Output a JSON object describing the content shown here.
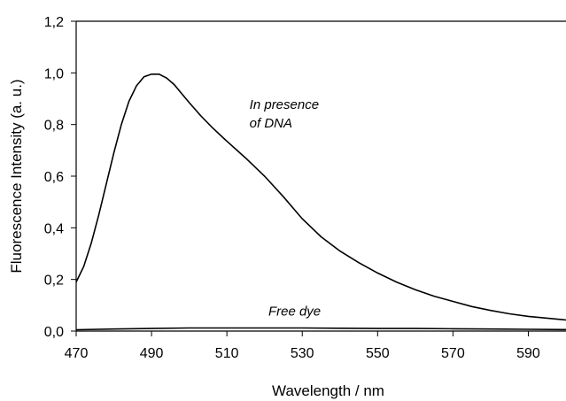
{
  "chart_data": {
    "type": "line",
    "title": "",
    "xlabel": "Wavelength / nm",
    "ylabel": "Fluorescence Intensity (a. u.)",
    "xlim": [
      470,
      600
    ],
    "ylim": [
      0,
      1.2
    ],
    "x_ticks": [
      "470",
      "490",
      "510",
      "530",
      "550",
      "570",
      "590"
    ],
    "y_ticks": [
      "0,0",
      "0,2",
      "0,4",
      "0,6",
      "0,8",
      "1,0",
      "1,2"
    ],
    "grid": false,
    "legend": "none",
    "annotations": [
      {
        "lines": [
          "In presence",
          "of DNA"
        ],
        "x": 516,
        "y": 0.86
      },
      {
        "lines": [
          "Free dye"
        ],
        "x": 521,
        "y": 0.06
      }
    ],
    "series": [
      {
        "x": [
          470,
          472,
          474,
          476,
          478,
          480,
          482,
          484,
          486,
          488,
          490,
          492,
          494,
          496,
          498,
          500,
          503,
          506,
          510,
          515,
          520,
          525,
          530,
          535,
          540,
          545,
          550,
          555,
          560,
          565,
          570,
          575,
          580,
          585,
          590,
          595,
          600
        ],
        "y": [
          0.19,
          0.25,
          0.34,
          0.45,
          0.57,
          0.69,
          0.8,
          0.89,
          0.95,
          0.985,
          0.995,
          0.995,
          0.98,
          0.955,
          0.92,
          0.885,
          0.835,
          0.79,
          0.735,
          0.67,
          0.6,
          0.52,
          0.435,
          0.365,
          0.31,
          0.265,
          0.225,
          0.19,
          0.16,
          0.135,
          0.115,
          0.095,
          0.08,
          0.067,
          0.057,
          0.05,
          0.043
        ]
      },
      {
        "x": [
          470,
          480,
          490,
          500,
          510,
          520,
          530,
          540,
          550,
          560,
          570,
          580,
          590,
          600
        ],
        "y": [
          0.005,
          0.008,
          0.01,
          0.012,
          0.012,
          0.012,
          0.012,
          0.011,
          0.01,
          0.01,
          0.009,
          0.008,
          0.007,
          0.006
        ]
      }
    ]
  }
}
